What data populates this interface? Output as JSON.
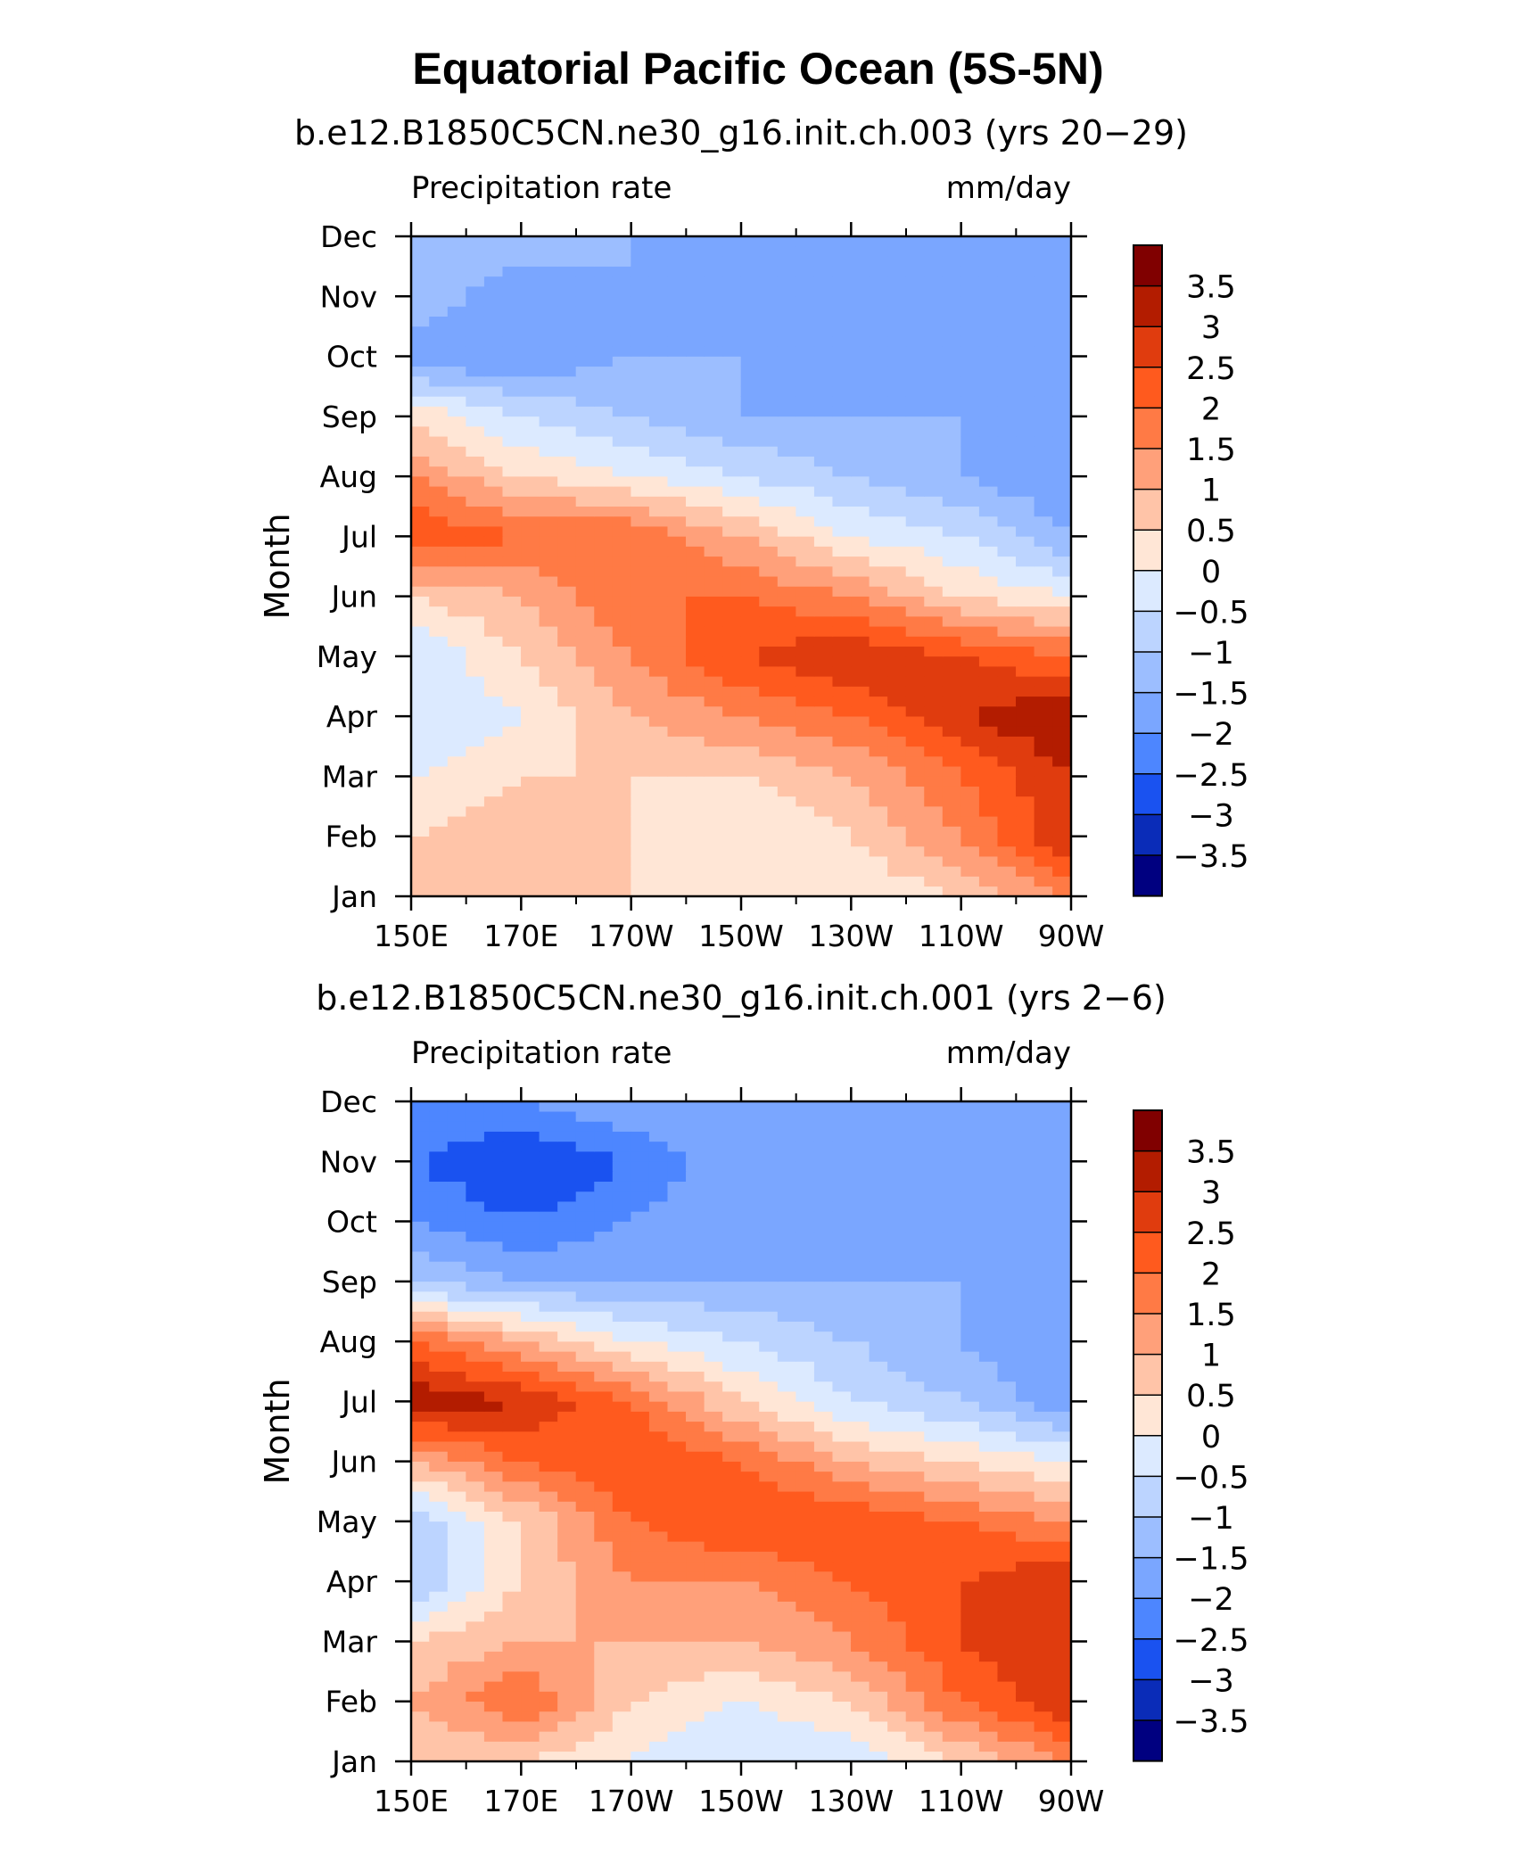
{
  "title": "Equatorial Pacific Ocean (5S-5N)",
  "chart_data": [
    {
      "type": "heatmap",
      "subtitle": "b.e12.B1850C5CN.ne30_g16.init.ch.003 (yrs 20−29)",
      "left_label": "Precipitation rate",
      "right_label": "mm/day",
      "ylabel": "Month",
      "xticks": [
        "150E",
        "170E",
        "170W",
        "150W",
        "130W",
        "110W",
        "90W"
      ],
      "yticks": [
        "Jan",
        "Feb",
        "Mar",
        "Apr",
        "May",
        "Jun",
        "Jul",
        "Aug",
        "Sep",
        "Oct",
        "Nov",
        "Dec"
      ],
      "xlim": [
        150,
        270
      ],
      "ylim": [
        1,
        12
      ],
      "colorbar_levels": [
        "3.5",
        "3",
        "2.5",
        "2",
        "1.5",
        "1",
        "0.5",
        "0",
        "−0.5",
        "−1",
        "−1.5",
        "−2",
        "−2.5",
        "−3",
        "−3.5"
      ],
      "colorbar_colors": [
        "#800000",
        "#b31c00",
        "#e03c0e",
        "#ff5a1e",
        "#ff7a45",
        "#ffa07a",
        "#ffc4a8",
        "#ffe6d6",
        "#dceaff",
        "#bcd4ff",
        "#9cbeff",
        "#7aa6ff",
        "#4d86ff",
        "#1a52f0",
        "#0a2cb8",
        "#000080"
      ],
      "x_grid": [
        150,
        170,
        190,
        210,
        230,
        250,
        270
      ],
      "y_grid": [
        1,
        2,
        3,
        4,
        5,
        6,
        7,
        8,
        9,
        10,
        11,
        12
      ],
      "values": [
        [
          0.5,
          1.0,
          0.5,
          0.0,
          0.0,
          0.5,
          1.5
        ],
        [
          0.5,
          1.0,
          0.5,
          0.0,
          0.5,
          1.5,
          3.0
        ],
        [
          0.0,
          0.5,
          0.5,
          0.5,
          1.0,
          2.0,
          3.0
        ],
        [
          -0.5,
          0.0,
          1.0,
          1.5,
          2.0,
          3.0,
          3.5
        ],
        [
          -0.5,
          0.5,
          1.5,
          2.5,
          3.0,
          2.5,
          2.0
        ],
        [
          0.5,
          1.0,
          2.0,
          2.0,
          1.5,
          0.5,
          0.0
        ],
        [
          2.5,
          2.0,
          2.0,
          1.0,
          0.0,
          -0.5,
          -1.5
        ],
        [
          1.5,
          0.5,
          0.0,
          -0.5,
          -1.0,
          -1.5,
          -2.0
        ],
        [
          0.5,
          -0.5,
          -1.0,
          -1.5,
          -1.5,
          -1.5,
          -2.0
        ],
        [
          -2.0,
          -2.0,
          -1.5,
          -1.5,
          -1.5,
          -1.5,
          -2.0
        ],
        [
          -1.0,
          -2.0,
          -1.5,
          -1.5,
          -1.5,
          -1.5,
          -2.0
        ],
        [
          -1.0,
          -1.0,
          -1.5,
          -1.5,
          -1.5,
          -1.5,
          -1.5
        ]
      ]
    },
    {
      "type": "heatmap",
      "subtitle": "b.e12.B1850C5CN.ne30_g16.init.ch.001 (yrs 2−6)",
      "left_label": "Precipitation rate",
      "right_label": "mm/day",
      "ylabel": "Month",
      "xticks": [
        "150E",
        "170E",
        "170W",
        "150W",
        "130W",
        "110W",
        "90W"
      ],
      "yticks": [
        "Jan",
        "Feb",
        "Mar",
        "Apr",
        "May",
        "Jun",
        "Jul",
        "Aug",
        "Sep",
        "Oct",
        "Nov",
        "Dec"
      ],
      "xlim": [
        150,
        270
      ],
      "ylim": [
        1,
        12
      ],
      "colorbar_levels": [
        "3.5",
        "3",
        "2.5",
        "2",
        "1.5",
        "1",
        "0.5",
        "0",
        "−0.5",
        "−1",
        "−1.5",
        "−2",
        "−2.5",
        "−3",
        "−3.5"
      ],
      "colorbar_colors": [
        "#800000",
        "#b31c00",
        "#e03c0e",
        "#ff5a1e",
        "#ff7a45",
        "#ffa07a",
        "#ffc4a8",
        "#ffe6d6",
        "#dceaff",
        "#bcd4ff",
        "#9cbeff",
        "#7aa6ff",
        "#4d86ff",
        "#1a52f0",
        "#0a2cb8",
        "#000080"
      ],
      "x_grid": [
        150,
        170,
        190,
        210,
        230,
        250,
        270
      ],
      "y_grid": [
        1,
        2,
        3,
        4,
        5,
        6,
        7,
        8,
        9,
        10,
        11,
        12
      ],
      "values": [
        [
          0.5,
          0.5,
          0.0,
          -0.5,
          -0.5,
          0.5,
          1.5
        ],
        [
          1.0,
          2.0,
          0.5,
          0.0,
          0.5,
          2.0,
          3.0
        ],
        [
          0.5,
          1.0,
          1.0,
          1.0,
          1.5,
          2.5,
          3.0
        ],
        [
          -1.0,
          0.5,
          1.5,
          1.5,
          2.0,
          2.5,
          3.0
        ],
        [
          -1.0,
          0.5,
          2.0,
          2.5,
          2.5,
          2.0,
          1.5
        ],
        [
          1.0,
          2.0,
          2.5,
          2.0,
          1.0,
          0.5,
          0.0
        ],
        [
          3.5,
          3.0,
          2.0,
          0.5,
          -0.5,
          -1.0,
          -2.0
        ],
        [
          2.0,
          1.0,
          0.0,
          -0.5,
          -1.0,
          -1.5,
          -2.0
        ],
        [
          -1.0,
          -1.5,
          -1.5,
          -1.5,
          -1.5,
          -1.5,
          -1.5
        ],
        [
          -2.0,
          -2.5,
          -2.0,
          -1.5,
          -1.5,
          -1.5,
          -2.0
        ],
        [
          -2.5,
          -3.0,
          -2.5,
          -1.5,
          -1.5,
          -1.5,
          -2.0
        ],
        [
          -2.0,
          -2.0,
          -1.5,
          -1.5,
          -1.5,
          -1.5,
          -1.5
        ]
      ]
    }
  ]
}
